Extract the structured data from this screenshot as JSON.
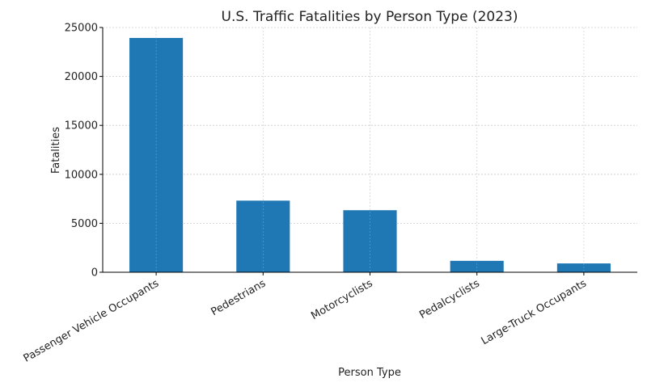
{
  "chart_data": {
    "type": "bar",
    "title": "U.S. Traffic Fatalities by Person Type (2023)",
    "xlabel": "Person Type",
    "ylabel": "Fatalities",
    "categories": [
      "Passenger Vehicle Occupants",
      "Pedestrians",
      "Motorcyclists",
      "Pedalcyclists",
      "Large-Truck Occupants"
    ],
    "values": [
      23930,
      7314,
      6335,
      1166,
      900
    ],
    "ylim": [
      0,
      25000
    ],
    "yticks": [
      0,
      5000,
      10000,
      15000,
      20000,
      25000
    ],
    "grid": true,
    "bar_color": "#1f77b4"
  }
}
